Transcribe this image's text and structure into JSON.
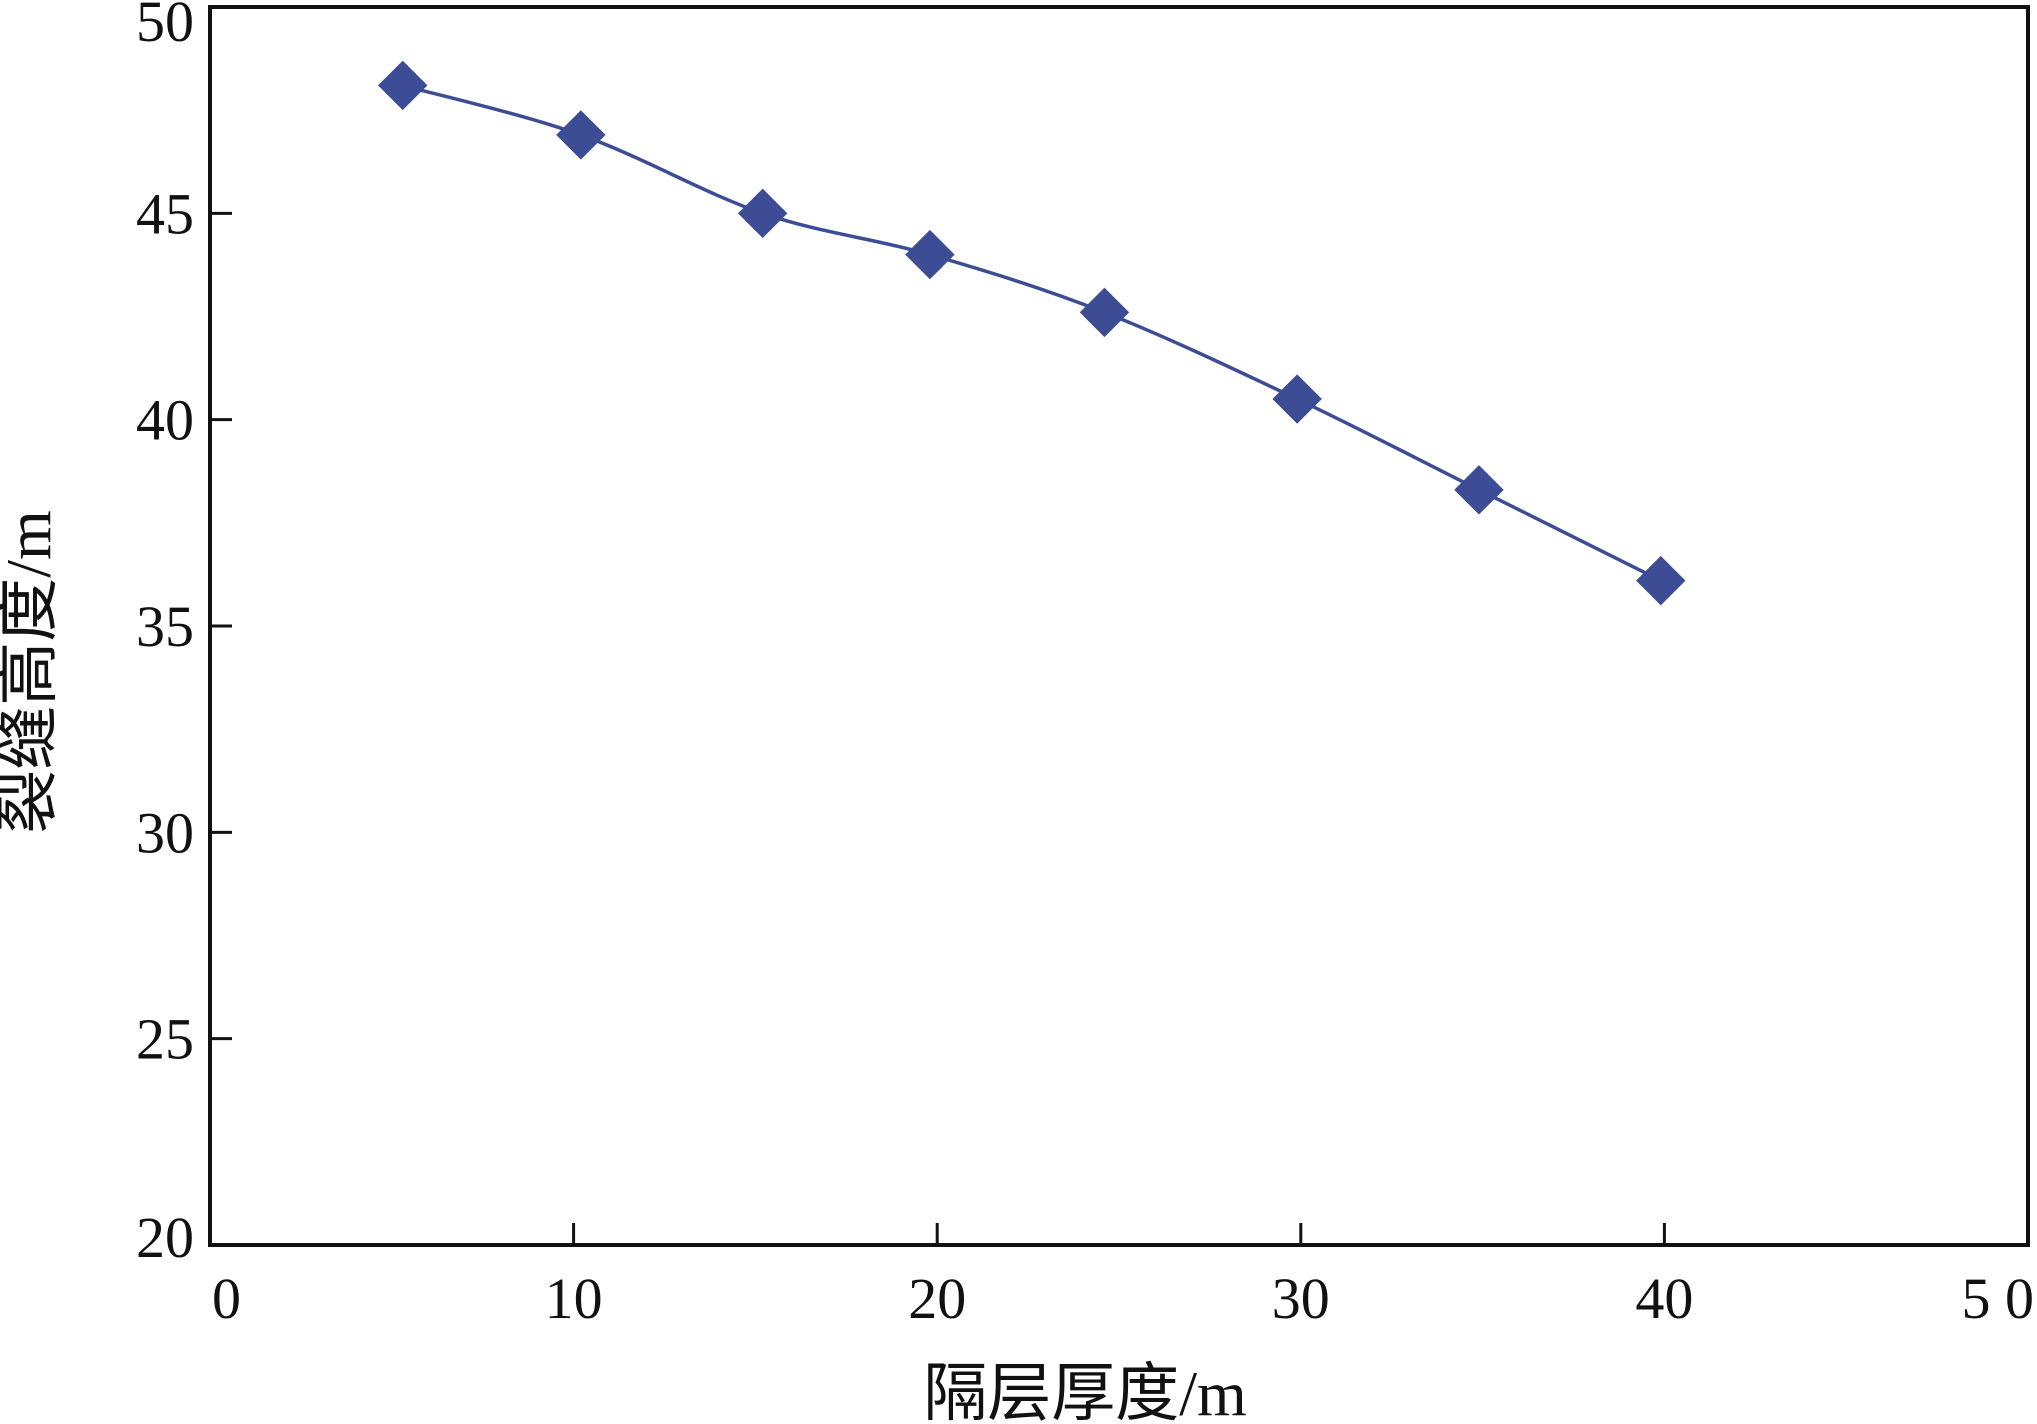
{
  "colors": {
    "series": "#3d4d95",
    "axis": "#111111",
    "background": "#ffffff"
  },
  "chart_data": {
    "type": "line",
    "title": "",
    "xlabel": "隔层厚度/m",
    "ylabel": "裂缝高度/m",
    "xlim": [
      0,
      50
    ],
    "ylim": [
      20,
      50
    ],
    "x_ticks": [
      0,
      10,
      20,
      30,
      40,
      50
    ],
    "x_tick_labels": [
      "0",
      "10",
      "20",
      "30",
      "40",
      "5 0"
    ],
    "y_ticks": [
      20,
      25,
      30,
      35,
      40,
      45,
      50
    ],
    "y_tick_labels": [
      "20",
      "25",
      "30",
      "35",
      "40",
      "45",
      "50"
    ],
    "grid": false,
    "legend": "none",
    "marker": "diamond",
    "series": [
      {
        "x": [
          5.3,
          10.2,
          15.2,
          19.8,
          24.6,
          29.9,
          34.9,
          39.9
        ],
        "values": [
          48.1,
          46.9,
          45.0,
          44.0,
          42.6,
          40.5,
          38.3,
          36.1
        ]
      }
    ]
  }
}
